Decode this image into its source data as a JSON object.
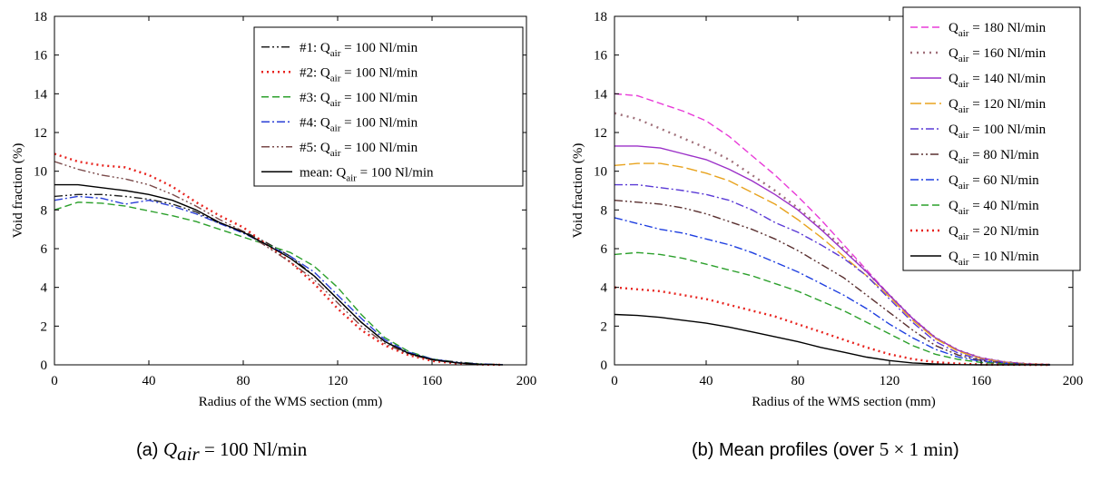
{
  "chart_data": [
    {
      "type": "line",
      "caption": {
        "prefix": "(a) ",
        "math": "Q",
        "sub": "air",
        "suffix": " = 100 Nl/min"
      },
      "xlabel": "Radius of the WMS section (mm)",
      "ylabel": "Void fraction (%)",
      "xlim": [
        0,
        200
      ],
      "ylim": [
        0,
        18
      ],
      "xticks": [
        0,
        40,
        80,
        120,
        160,
        200
      ],
      "yticks": [
        0,
        2,
        4,
        6,
        8,
        10,
        12,
        14,
        16,
        18
      ],
      "grid": false,
      "legend_position": "top-right",
      "series": [
        {
          "name": "#1: Q",
          "sub": "air",
          "rest": " = 100 Nl/min",
          "color": "#222222",
          "dash": "9,3,2,3,2,3",
          "x": [
            0,
            10,
            20,
            30,
            40,
            50,
            60,
            70,
            80,
            90,
            100,
            110,
            120,
            130,
            140,
            150,
            160,
            170,
            180,
            190
          ],
          "y": [
            8.7,
            8.8,
            8.8,
            8.7,
            8.55,
            8.3,
            7.9,
            7.3,
            6.9,
            6.3,
            5.6,
            4.6,
            3.4,
            2.2,
            1.2,
            0.6,
            0.3,
            0.15,
            0.05,
            0.01
          ]
        },
        {
          "name": "#2: Q",
          "sub": "air",
          "rest": " = 100 Nl/min",
          "color": "#e8231e",
          "dash": "2,4",
          "x": [
            0,
            10,
            20,
            30,
            40,
            50,
            60,
            70,
            80,
            90,
            100,
            110,
            120,
            130,
            140,
            150,
            160,
            170,
            180,
            190
          ],
          "y": [
            10.9,
            10.5,
            10.3,
            10.2,
            9.8,
            9.2,
            8.4,
            7.7,
            7.1,
            6.2,
            5.3,
            4.2,
            2.9,
            1.8,
            1.0,
            0.5,
            0.2,
            0.08,
            0.02,
            0.0
          ]
        },
        {
          "name": "#3: Q",
          "sub": "air",
          "rest": " = 100 Nl/min",
          "color": "#2ca02c",
          "dash": "8,4",
          "x": [
            0,
            10,
            20,
            30,
            40,
            50,
            60,
            70,
            80,
            90,
            100,
            110,
            120,
            130,
            140,
            150,
            160,
            170,
            180,
            190
          ],
          "y": [
            8.0,
            8.4,
            8.35,
            8.2,
            7.95,
            7.7,
            7.4,
            7.0,
            6.6,
            6.2,
            5.8,
            5.1,
            4.0,
            2.6,
            1.4,
            0.7,
            0.3,
            0.12,
            0.04,
            0.01
          ]
        },
        {
          "name": "#4: Q",
          "sub": "air",
          "rest": " = 100 Nl/min",
          "color": "#2a3fd6",
          "dash": "9,3,2,3",
          "x": [
            0,
            10,
            20,
            30,
            40,
            50,
            60,
            70,
            80,
            90,
            100,
            110,
            120,
            130,
            140,
            150,
            160,
            170,
            180,
            190
          ],
          "y": [
            8.5,
            8.7,
            8.6,
            8.3,
            8.5,
            8.2,
            7.8,
            7.3,
            6.8,
            6.2,
            5.6,
            4.8,
            3.6,
            2.4,
            1.3,
            0.65,
            0.3,
            0.12,
            0.04,
            0.01
          ]
        },
        {
          "name": "#5: Q",
          "sub": "air",
          "rest": " = 100 Nl/min",
          "color": "#7a4a4a",
          "dash": "9,3,2,3,2,3,2,3",
          "x": [
            0,
            10,
            20,
            30,
            40,
            50,
            60,
            70,
            80,
            90,
            100,
            110,
            120,
            130,
            140,
            150,
            160,
            170,
            180,
            190
          ],
          "y": [
            10.5,
            10.1,
            9.8,
            9.6,
            9.3,
            8.8,
            8.2,
            7.5,
            6.9,
            6.1,
            5.3,
            4.4,
            3.2,
            2.0,
            1.1,
            0.55,
            0.25,
            0.1,
            0.03,
            0.0
          ]
        },
        {
          "name": "mean: Q",
          "sub": "air",
          "rest": " = 100 Nl/min",
          "color": "#000000",
          "dash": "",
          "x": [
            0,
            10,
            20,
            30,
            40,
            50,
            60,
            70,
            80,
            90,
            100,
            110,
            120,
            130,
            140,
            150,
            160,
            170,
            180,
            190
          ],
          "y": [
            9.3,
            9.3,
            9.15,
            9.0,
            8.8,
            8.5,
            8.0,
            7.35,
            6.85,
            6.2,
            5.5,
            4.6,
            3.4,
            2.2,
            1.2,
            0.6,
            0.27,
            0.11,
            0.03,
            0.0
          ]
        }
      ]
    },
    {
      "type": "line",
      "caption": {
        "prefix": "(b) Mean profiles (over ",
        "math": "5 × 1 min",
        "sub": "",
        "suffix": ")"
      },
      "xlabel": "Radius of the WMS section (mm)",
      "ylabel": "Void fraction (%)",
      "xlim": [
        0,
        200
      ],
      "ylim": [
        0,
        18
      ],
      "xticks": [
        0,
        40,
        80,
        120,
        160,
        200
      ],
      "yticks": [
        0,
        2,
        4,
        6,
        8,
        10,
        12,
        14,
        16,
        18
      ],
      "grid": false,
      "legend_position": "top-right",
      "series": [
        {
          "name": "Q",
          "sub": "air",
          "rest": " = 180 Nl/min",
          "color": "#e83bd8",
          "dash": "8,4",
          "x": [
            0,
            10,
            20,
            30,
            40,
            50,
            60,
            70,
            80,
            90,
            100,
            110,
            120,
            130,
            140,
            150,
            160,
            170,
            180,
            190
          ],
          "y": [
            14.0,
            13.9,
            13.5,
            13.1,
            12.6,
            11.8,
            10.8,
            9.8,
            8.7,
            7.5,
            6.2,
            4.9,
            3.6,
            2.4,
            1.4,
            0.75,
            0.35,
            0.15,
            0.05,
            0.01
          ]
        },
        {
          "name": "Q",
          "sub": "air",
          "rest": " = 160 Nl/min",
          "color": "#a0707a",
          "dash": "2,5",
          "x": [
            0,
            10,
            20,
            30,
            40,
            50,
            60,
            70,
            80,
            90,
            100,
            110,
            120,
            130,
            140,
            150,
            160,
            170,
            180,
            190
          ],
          "y": [
            13.0,
            12.7,
            12.2,
            11.7,
            11.2,
            10.6,
            9.8,
            9.0,
            8.1,
            7.1,
            6.0,
            4.8,
            3.6,
            2.4,
            1.4,
            0.75,
            0.35,
            0.15,
            0.05,
            0.01
          ]
        },
        {
          "name": "Q",
          "sub": "air",
          "rest": " = 140 Nl/min",
          "color": "#9b30c8",
          "dash": "",
          "x": [
            0,
            10,
            20,
            30,
            40,
            50,
            60,
            70,
            80,
            90,
            100,
            110,
            120,
            130,
            140,
            150,
            160,
            170,
            180,
            190
          ],
          "y": [
            11.3,
            11.3,
            11.2,
            10.9,
            10.6,
            10.1,
            9.5,
            8.8,
            8.0,
            7.0,
            5.9,
            4.8,
            3.6,
            2.4,
            1.4,
            0.75,
            0.35,
            0.15,
            0.05,
            0.01
          ]
        },
        {
          "name": "Q",
          "sub": "air",
          "rest": " = 120 Nl/min",
          "color": "#e8a31e",
          "dash": "12,4",
          "x": [
            0,
            10,
            20,
            30,
            40,
            50,
            60,
            70,
            80,
            90,
            100,
            110,
            120,
            130,
            140,
            150,
            160,
            170,
            180,
            190
          ],
          "y": [
            10.3,
            10.4,
            10.4,
            10.2,
            9.9,
            9.5,
            8.9,
            8.3,
            7.5,
            6.6,
            5.6,
            4.6,
            3.5,
            2.3,
            1.35,
            0.7,
            0.32,
            0.13,
            0.04,
            0.01
          ]
        },
        {
          "name": "Q",
          "sub": "air",
          "rest": " = 100 Nl/min",
          "color": "#5a3ad6",
          "dash": "9,3,2,3",
          "x": [
            0,
            10,
            20,
            30,
            40,
            50,
            60,
            70,
            80,
            90,
            100,
            110,
            120,
            130,
            140,
            150,
            160,
            170,
            180,
            190
          ],
          "y": [
            9.3,
            9.3,
            9.15,
            9.0,
            8.8,
            8.5,
            8.0,
            7.35,
            6.85,
            6.2,
            5.5,
            4.6,
            3.4,
            2.2,
            1.2,
            0.6,
            0.27,
            0.11,
            0.03,
            0.0
          ]
        },
        {
          "name": "Q",
          "sub": "air",
          "rest": " =   80 Nl/min",
          "color": "#5a3030",
          "dash": "9,3,2,3,2,3",
          "x": [
            0,
            10,
            20,
            30,
            40,
            50,
            60,
            70,
            80,
            90,
            100,
            110,
            120,
            130,
            140,
            150,
            160,
            170,
            180,
            190
          ],
          "y": [
            8.5,
            8.4,
            8.3,
            8.1,
            7.8,
            7.4,
            7.0,
            6.5,
            5.9,
            5.2,
            4.5,
            3.6,
            2.7,
            1.8,
            1.0,
            0.5,
            0.22,
            0.09,
            0.03,
            0.0
          ]
        },
        {
          "name": "Q",
          "sub": "air",
          "rest": " =   60 Nl/min",
          "color": "#1f3fe0",
          "dash": "9,3,2,3",
          "x": [
            0,
            10,
            20,
            30,
            40,
            50,
            60,
            70,
            80,
            90,
            100,
            110,
            120,
            130,
            140,
            150,
            160,
            170,
            180,
            190
          ],
          "y": [
            7.6,
            7.3,
            7.0,
            6.8,
            6.5,
            6.2,
            5.8,
            5.3,
            4.8,
            4.2,
            3.6,
            2.9,
            2.1,
            1.4,
            0.8,
            0.4,
            0.18,
            0.07,
            0.02,
            0.0
          ]
        },
        {
          "name": "Q",
          "sub": "air",
          "rest": " =   40 Nl/min",
          "color": "#2ca02c",
          "dash": "8,4",
          "x": [
            0,
            10,
            20,
            30,
            40,
            50,
            60,
            70,
            80,
            90,
            100,
            110,
            120,
            130,
            140,
            150,
            160,
            170,
            180,
            190
          ],
          "y": [
            5.7,
            5.8,
            5.7,
            5.5,
            5.2,
            4.9,
            4.6,
            4.2,
            3.8,
            3.3,
            2.8,
            2.2,
            1.6,
            1.0,
            0.55,
            0.28,
            0.12,
            0.05,
            0.01,
            0.0
          ]
        },
        {
          "name": "Q",
          "sub": "air",
          "rest": " =   20 Nl/min",
          "color": "#e8231e",
          "dash": "2,4",
          "x": [
            0,
            10,
            20,
            30,
            40,
            50,
            60,
            70,
            80,
            90,
            100,
            110,
            120,
            130,
            140,
            150,
            160,
            170,
            180,
            190
          ],
          "y": [
            4.0,
            3.9,
            3.8,
            3.6,
            3.4,
            3.1,
            2.8,
            2.5,
            2.1,
            1.7,
            1.3,
            0.9,
            0.55,
            0.3,
            0.14,
            0.06,
            0.02,
            0.01,
            0.0,
            0.0
          ]
        },
        {
          "name": "Q",
          "sub": "air",
          "rest": " =   10 Nl/min",
          "color": "#000000",
          "dash": "",
          "x": [
            0,
            10,
            20,
            30,
            40,
            50,
            60,
            70,
            80,
            90,
            100,
            110,
            120,
            130,
            140,
            150,
            160,
            170,
            180,
            190
          ],
          "y": [
            2.6,
            2.55,
            2.45,
            2.3,
            2.15,
            1.95,
            1.7,
            1.45,
            1.2,
            0.9,
            0.65,
            0.4,
            0.22,
            0.1,
            0.04,
            0.01,
            0.0,
            0.0,
            0.0,
            0.0
          ]
        }
      ]
    }
  ]
}
